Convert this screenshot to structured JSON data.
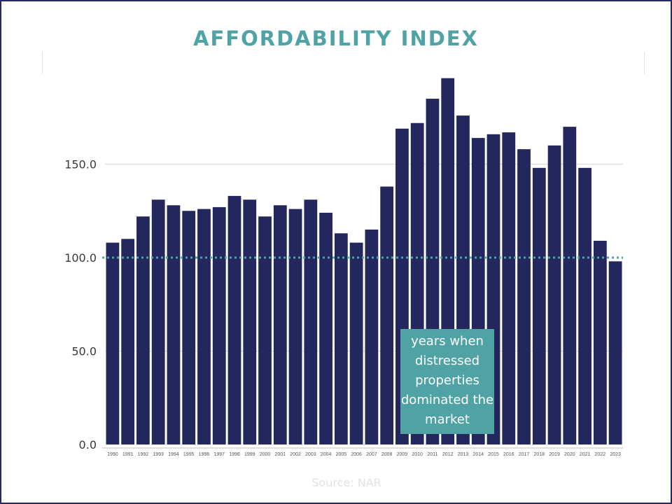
{
  "chart_data": {
    "type": "bar",
    "title": "AFFORDABILITY INDEX",
    "categories": [
      "1990",
      "1991",
      "1992",
      "1993",
      "1994",
      "1995",
      "1996",
      "1997",
      "1998",
      "1999",
      "2000",
      "2001",
      "2002",
      "2003",
      "2004",
      "2005",
      "2006",
      "2007",
      "2008",
      "2009",
      "2010",
      "2011",
      "2012",
      "2013",
      "2014",
      "2015",
      "2016",
      "2017",
      "2018",
      "2019",
      "2020",
      "2021",
      "2022",
      "2023"
    ],
    "values": [
      108,
      110,
      122,
      131,
      128,
      125,
      126,
      127,
      133,
      131,
      122,
      128,
      126,
      131,
      124,
      113,
      108,
      115,
      138,
      169,
      172,
      185,
      196,
      176,
      164,
      166,
      167,
      158,
      148,
      160,
      170,
      148,
      109,
      98
    ],
    "yticks": [
      "0.0",
      "50.0",
      "100.0",
      "150.0"
    ],
    "ylim": [
      0,
      200
    ],
    "reference_line": 100,
    "grid": true,
    "annotation": "years when distressed properties dominated the market",
    "source": "Source: NAR",
    "colors": {
      "bar": "#23275e",
      "accent": "#4fa3a5",
      "grid": "#d9d9d9"
    }
  }
}
